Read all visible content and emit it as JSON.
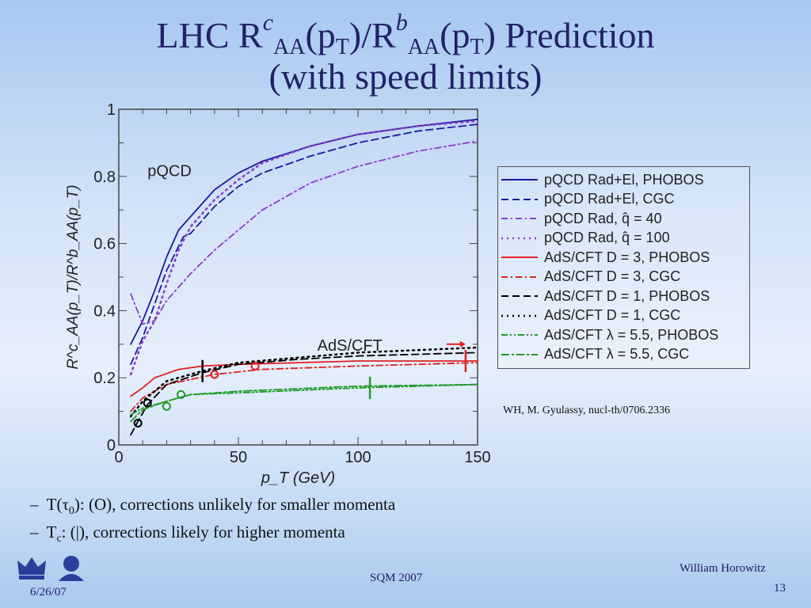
{
  "title": {
    "line1": {
      "a": "LHC R",
      "b": "c",
      "c": "AA",
      "d": "(p",
      "e": "T",
      "f": ")/R",
      "g": "b",
      "h": "AA",
      "i": "(p",
      "j": "T",
      "k": ") Prediction"
    },
    "line2": "(with speed limits)"
  },
  "credit": "WH, M. Gyulassy, nucl-th/0706.2336",
  "bullets": [
    {
      "dash": "–",
      "a": "T(τ",
      "sub": "0",
      "b": "): (O), corrections unlikely for smaller momenta"
    },
    {
      "dash": "–",
      "a": "T",
      "sub": "c",
      "b": ": (|), corrections likely for higher momenta"
    }
  ],
  "footer": {
    "date": "6/26/07",
    "conference": "SQM 2007",
    "author": "William Horowitz",
    "page": "13"
  },
  "chart_data": {
    "type": "line",
    "xlabel": "p_T (GeV)",
    "ylabel": "R^c_AA(p_T)/R^b_AA(p_T)",
    "xlim": [
      0,
      150
    ],
    "ylim": [
      0,
      1
    ],
    "xticks": [
      "0",
      "50",
      "100",
      "150"
    ],
    "yticks": [
      "0",
      "0.2",
      "0.4",
      "0.6",
      "0.8",
      "1"
    ],
    "annotations": [
      "pQCD",
      "AdS/CFT"
    ],
    "series": [
      {
        "name": "pQCD Rad+El, PHOBOS",
        "color": "#1a1aa0",
        "style": "solid",
        "x": [
          5,
          10,
          15,
          20,
          25,
          30,
          40,
          50,
          60,
          80,
          100,
          125,
          150
        ],
        "y": [
          0.3,
          0.37,
          0.46,
          0.56,
          0.64,
          0.68,
          0.76,
          0.81,
          0.845,
          0.89,
          0.925,
          0.95,
          0.97
        ]
      },
      {
        "name": "pQCD Rad+El, CGC",
        "color": "#1a1aa0",
        "style": "dash",
        "x": [
          5,
          10,
          15,
          20,
          27,
          30,
          40,
          50,
          60,
          80,
          100,
          125,
          150
        ],
        "y": [
          0.24,
          0.32,
          0.42,
          0.52,
          0.62,
          0.63,
          0.71,
          0.77,
          0.81,
          0.86,
          0.9,
          0.935,
          0.955
        ]
      },
      {
        "name": "pQCD Rad, q̂ = 40",
        "color": "#8a3fc8",
        "style": "dashdot",
        "x": [
          5,
          10,
          15,
          20,
          25,
          30,
          40,
          50,
          60,
          80,
          100,
          125,
          150
        ],
        "y": [
          0.45,
          0.36,
          0.37,
          0.43,
          0.47,
          0.51,
          0.58,
          0.64,
          0.7,
          0.78,
          0.83,
          0.875,
          0.905
        ]
      },
      {
        "name": "pQCD Rad, q̂ = 100",
        "color": "#8a3fc8",
        "style": "dot",
        "x": [
          5,
          10,
          15,
          20,
          25,
          30,
          40,
          50,
          60,
          80,
          100,
          125,
          150
        ],
        "y": [
          0.21,
          0.31,
          0.37,
          0.48,
          0.58,
          0.65,
          0.73,
          0.79,
          0.84,
          0.89,
          0.925,
          0.95,
          0.965
        ]
      },
      {
        "name": "AdS/CFT D = 3, PHOBOS",
        "color": "#e02020",
        "style": "solid",
        "x": [
          5,
          10,
          15,
          25,
          35,
          50,
          75,
          100,
          150
        ],
        "y": [
          0.145,
          0.17,
          0.2,
          0.225,
          0.235,
          0.24,
          0.245,
          0.25,
          0.25
        ]
      },
      {
        "name": "AdS/CFT D = 3, CGC",
        "color": "#e02020",
        "style": "dashdot",
        "x": [
          5,
          10,
          20,
          40,
          60,
          100,
          150
        ],
        "y": [
          0.1,
          0.14,
          0.18,
          0.21,
          0.225,
          0.235,
          0.245
        ]
      },
      {
        "name": "AdS/CFT D = 1, PHOBOS",
        "color": "#000000",
        "style": "dash",
        "x": [
          5,
          8,
          12,
          20,
          35,
          50,
          75,
          100,
          150
        ],
        "y": [
          0.03,
          0.07,
          0.12,
          0.18,
          0.215,
          0.24,
          0.255,
          0.265,
          0.275
        ]
      },
      {
        "name": "AdS/CFT D = 1, CGC",
        "color": "#000000",
        "style": "dot",
        "x": [
          5,
          10,
          20,
          35,
          50,
          75,
          100,
          150
        ],
        "y": [
          0.085,
          0.13,
          0.19,
          0.22,
          0.245,
          0.26,
          0.275,
          0.29
        ]
      },
      {
        "name": "AdS/CFT λ = 5.5, PHOBOS",
        "color": "#22992a",
        "style": "dashdotdot",
        "x": [
          5,
          10,
          20,
          30,
          50,
          100,
          150
        ],
        "y": [
          0.09,
          0.11,
          0.13,
          0.15,
          0.155,
          0.17,
          0.18
        ]
      },
      {
        "name": "AdS/CFT λ = 5.5, CGC",
        "color": "#22992a",
        "style": "dashdash",
        "x": [
          5,
          10,
          20,
          30,
          50,
          100,
          150
        ],
        "y": [
          0.07,
          0.105,
          0.13,
          0.15,
          0.16,
          0.175,
          0.18
        ]
      }
    ],
    "circle_markers": [
      {
        "color": "#000000",
        "x": 8,
        "y": 0.065
      },
      {
        "color": "#000000",
        "x": 12,
        "y": 0.125
      },
      {
        "color": "#e02020",
        "x": 40,
        "y": 0.21
      },
      {
        "color": "#e02020",
        "x": 57,
        "y": 0.235
      },
      {
        "color": "#22992a",
        "x": 20,
        "y": 0.115
      },
      {
        "color": "#22992a",
        "x": 26,
        "y": 0.15
      }
    ],
    "bar_markers": [
      {
        "color": "#000000",
        "x": 35,
        "y": 0.22
      },
      {
        "color": "#e02020",
        "x": 145,
        "y": 0.25
      },
      {
        "color": "#22992a",
        "x": 105,
        "y": 0.17
      }
    ],
    "arrow": {
      "color": "#e02020",
      "x": [
        137,
        145
      ],
      "y": 0.3
    },
    "legend": "right-outside"
  }
}
